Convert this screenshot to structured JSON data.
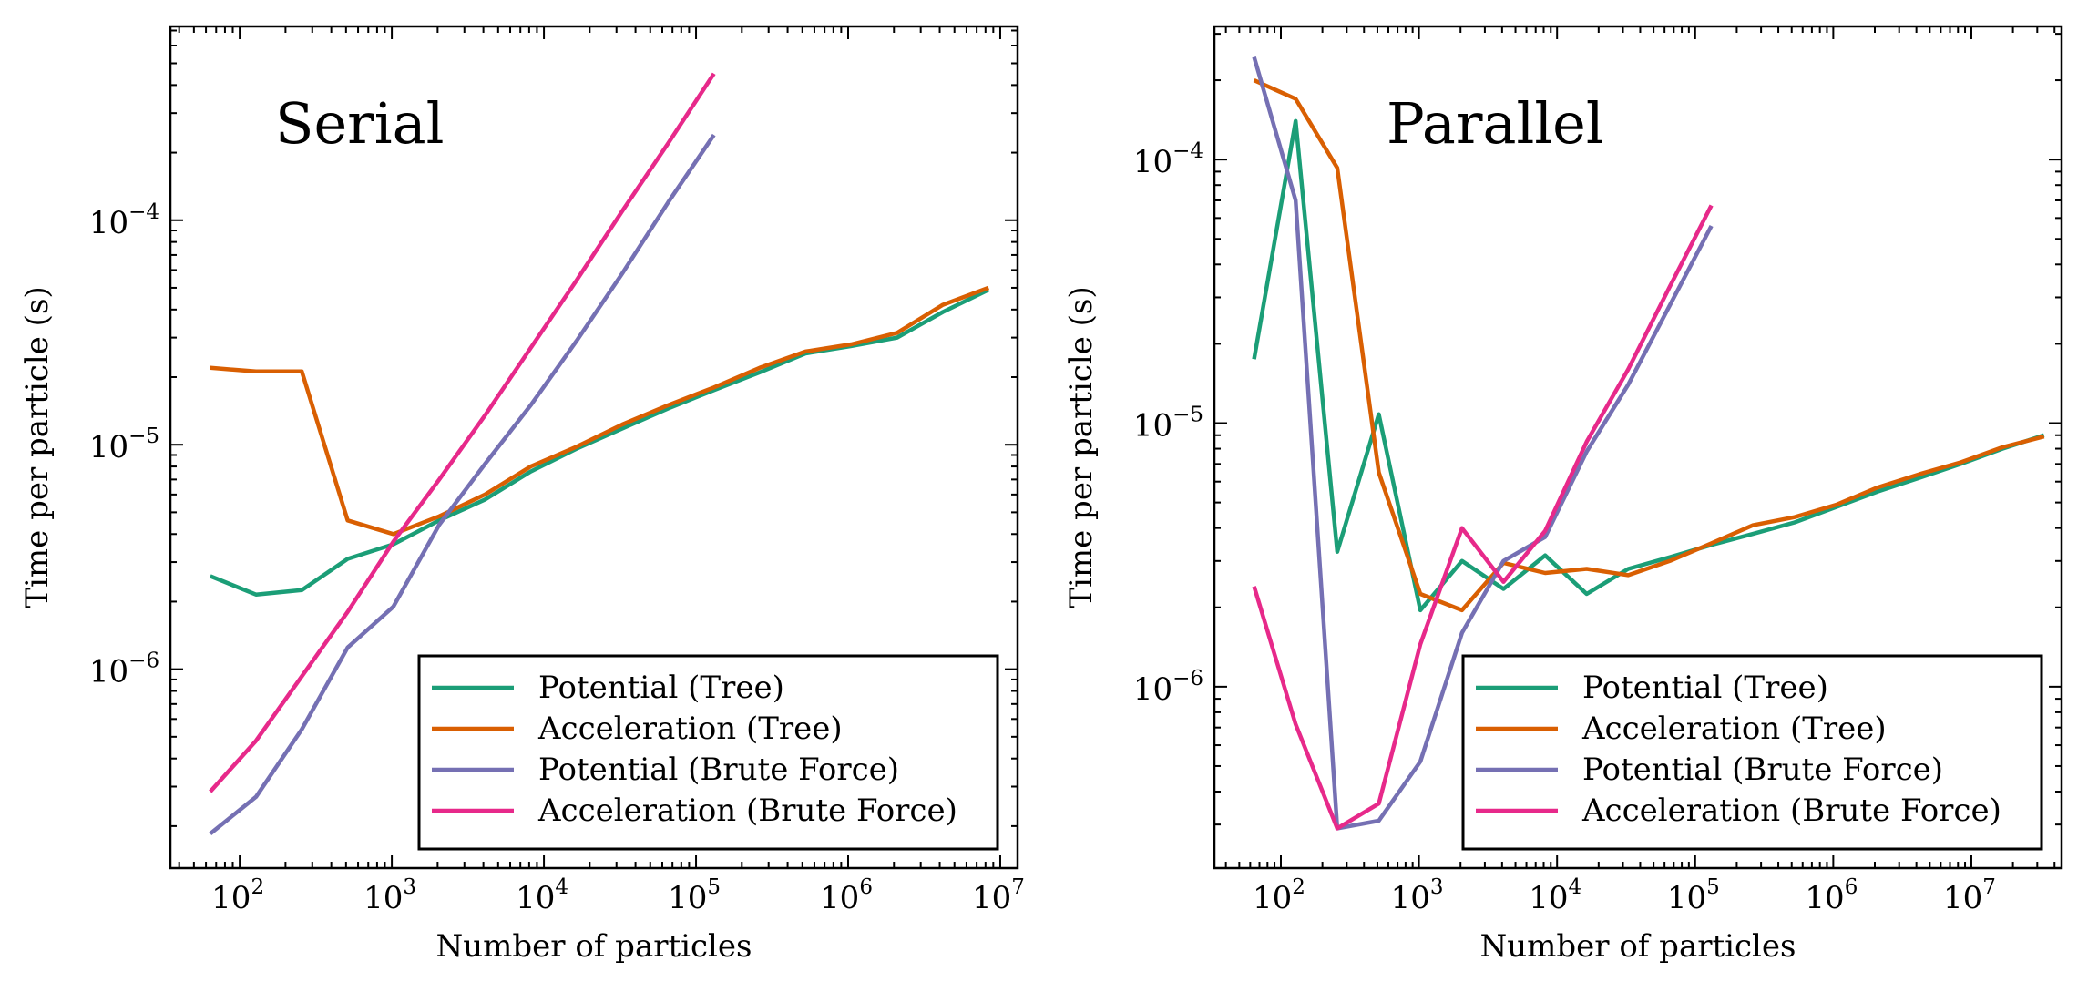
{
  "colors": {
    "potential_tree": "#1b9e77",
    "acceleration_tree": "#d95f02",
    "potential_brute": "#7570b3",
    "acceleration_brute": "#e7298a"
  },
  "chart_data": [
    {
      "type": "line",
      "title": "Serial",
      "xlabel": "Number of particles",
      "ylabel": "Time per particle (s)",
      "xscale": "log",
      "yscale": "log",
      "xlim": [
        35,
        13000000
      ],
      "ylim": [
        1.3e-07,
        0.00073
      ],
      "x_tick_labels": [
        {
          "base": "10",
          "exp": "2"
        },
        {
          "base": "10",
          "exp": "3"
        },
        {
          "base": "10",
          "exp": "4"
        },
        {
          "base": "10",
          "exp": "5"
        },
        {
          "base": "10",
          "exp": "6"
        },
        {
          "base": "10",
          "exp": "7"
        }
      ],
      "y_tick_labels": [
        {
          "base": "10",
          "exp": "−6"
        },
        {
          "base": "10",
          "exp": "−5"
        },
        {
          "base": "10",
          "exp": "−4"
        }
      ],
      "legend_position": "lower-right",
      "series": [
        {
          "name": "Potential (Tree)",
          "color_key": "potential_tree",
          "x": [
            64,
            128,
            256,
            512,
            1024,
            2048,
            4096,
            8192,
            16384,
            32768,
            65536,
            131072,
            262144,
            524288,
            1048576,
            2097152,
            4194304,
            8388608
          ],
          "y": [
            2.6e-06,
            2.15e-06,
            2.25e-06,
            3.1e-06,
            3.6e-06,
            4.6e-06,
            5.7e-06,
            7.6e-06,
            9.6e-06,
            1.18e-05,
            1.45e-05,
            1.75e-05,
            2.1e-05,
            2.55e-05,
            2.75e-05,
            3e-05,
            3.9e-05,
            4.9e-05
          ]
        },
        {
          "name": "Acceleration (Tree)",
          "color_key": "acceleration_tree",
          "x": [
            64,
            128,
            256,
            512,
            1024,
            2048,
            4096,
            8192,
            16384,
            32768,
            65536,
            131072,
            262144,
            524288,
            1048576,
            2097152,
            4194304,
            8388608
          ],
          "y": [
            2.2e-05,
            2.12e-05,
            2.12e-05,
            4.6e-06,
            4e-06,
            4.8e-06,
            6e-06,
            8e-06,
            9.8e-06,
            1.23e-05,
            1.5e-05,
            1.8e-05,
            2.2e-05,
            2.6e-05,
            2.8e-05,
            3.15e-05,
            4.2e-05,
            5e-05
          ]
        },
        {
          "name": "Potential (Brute Force)",
          "color_key": "potential_brute",
          "x": [
            64,
            128,
            256,
            512,
            1024,
            2048,
            4096,
            8192,
            16384,
            32768,
            65536,
            131072
          ],
          "y": [
            1.85e-07,
            2.7e-07,
            5.4e-07,
            1.25e-06,
            1.9e-06,
            4.4e-06,
            8.2e-06,
            1.5e-05,
            2.9e-05,
            5.8e-05,
            0.00012,
            0.00024
          ]
        },
        {
          "name": "Acceleration (Brute Force)",
          "color_key": "acceleration_brute",
          "x": [
            64,
            128,
            256,
            512,
            1024,
            2048,
            4096,
            8192,
            16384,
            32768,
            65536,
            131072
          ],
          "y": [
            2.85e-07,
            4.8e-07,
            9.3e-07,
            1.8e-06,
            3.7e-06,
            7e-06,
            1.35e-05,
            2.7e-05,
            5.4e-05,
            0.00011,
            0.00022,
            0.00045
          ]
        }
      ]
    },
    {
      "type": "line",
      "title": "Parallel",
      "xlabel": "Number of particles",
      "ylabel": "Time per particle (s)",
      "xscale": "log",
      "yscale": "log",
      "xlim": [
        33,
        45000000
      ],
      "ylim": [
        2.05e-07,
        0.00032
      ],
      "x_tick_labels": [
        {
          "base": "10",
          "exp": "2"
        },
        {
          "base": "10",
          "exp": "3"
        },
        {
          "base": "10",
          "exp": "4"
        },
        {
          "base": "10",
          "exp": "5"
        },
        {
          "base": "10",
          "exp": "6"
        },
        {
          "base": "10",
          "exp": "7"
        }
      ],
      "y_tick_labels": [
        {
          "base": "10",
          "exp": "−6"
        },
        {
          "base": "10",
          "exp": "−5"
        },
        {
          "base": "10",
          "exp": "−4"
        }
      ],
      "legend_position": "lower-right",
      "series": [
        {
          "name": "Potential (Tree)",
          "color_key": "potential_tree",
          "x": [
            64,
            128,
            256,
            512,
            1024,
            2048,
            4096,
            8192,
            16384,
            32768,
            65536,
            131072,
            262144,
            524288,
            1048576,
            2097152,
            4194304,
            8388608,
            16777216,
            33554432
          ],
          "y": [
            1.75e-05,
            0.00014,
            3.25e-06,
            1.08e-05,
            1.95e-06,
            3e-06,
            2.35e-06,
            3.15e-06,
            2.25e-06,
            2.8e-06,
            3.1e-06,
            3.45e-06,
            3.8e-06,
            4.2e-06,
            4.8e-06,
            5.5e-06,
            6.2e-06,
            7e-06,
            8e-06,
            9e-06
          ]
        },
        {
          "name": "Acceleration (Tree)",
          "color_key": "acceleration_tree",
          "x": [
            64,
            128,
            256,
            512,
            1024,
            2048,
            4096,
            8192,
            16384,
            32768,
            65536,
            131072,
            262144,
            524288,
            1048576,
            2097152,
            4194304,
            8388608,
            16777216,
            33554432
          ],
          "y": [
            0.0002,
            0.00017,
            9.3e-05,
            6.5e-06,
            2.25e-06,
            1.95e-06,
            2.95e-06,
            2.7e-06,
            2.8e-06,
            2.65e-06,
            3e-06,
            3.5e-06,
            4.1e-06,
            4.4e-06,
            4.9e-06,
            5.7e-06,
            6.4e-06,
            7.1e-06,
            8.1e-06,
            8.9e-06
          ]
        },
        {
          "name": "Potential (Brute Force)",
          "color_key": "potential_brute",
          "x": [
            64,
            128,
            256,
            512,
            1024,
            2048,
            4096,
            8192,
            16384,
            32768,
            65536,
            131072
          ],
          "y": [
            0.000245,
            7e-05,
            2.9e-07,
            3.1e-07,
            5.2e-07,
            1.6e-06,
            3e-06,
            3.7e-06,
            7.8e-06,
            1.4e-05,
            2.8e-05,
            5.6e-05
          ]
        },
        {
          "name": "Acceleration (Brute Force)",
          "color_key": "acceleration_brute",
          "x": [
            64,
            128,
            256,
            512,
            1024,
            2048,
            4096,
            8192,
            16384,
            32768,
            65536,
            131072
          ],
          "y": [
            2.4e-06,
            7.2e-07,
            2.9e-07,
            3.6e-07,
            1.45e-06,
            4e-06,
            2.5e-06,
            3.9e-06,
            8.5e-06,
            1.6e-05,
            3.3e-05,
            6.7e-05
          ]
        }
      ]
    }
  ]
}
